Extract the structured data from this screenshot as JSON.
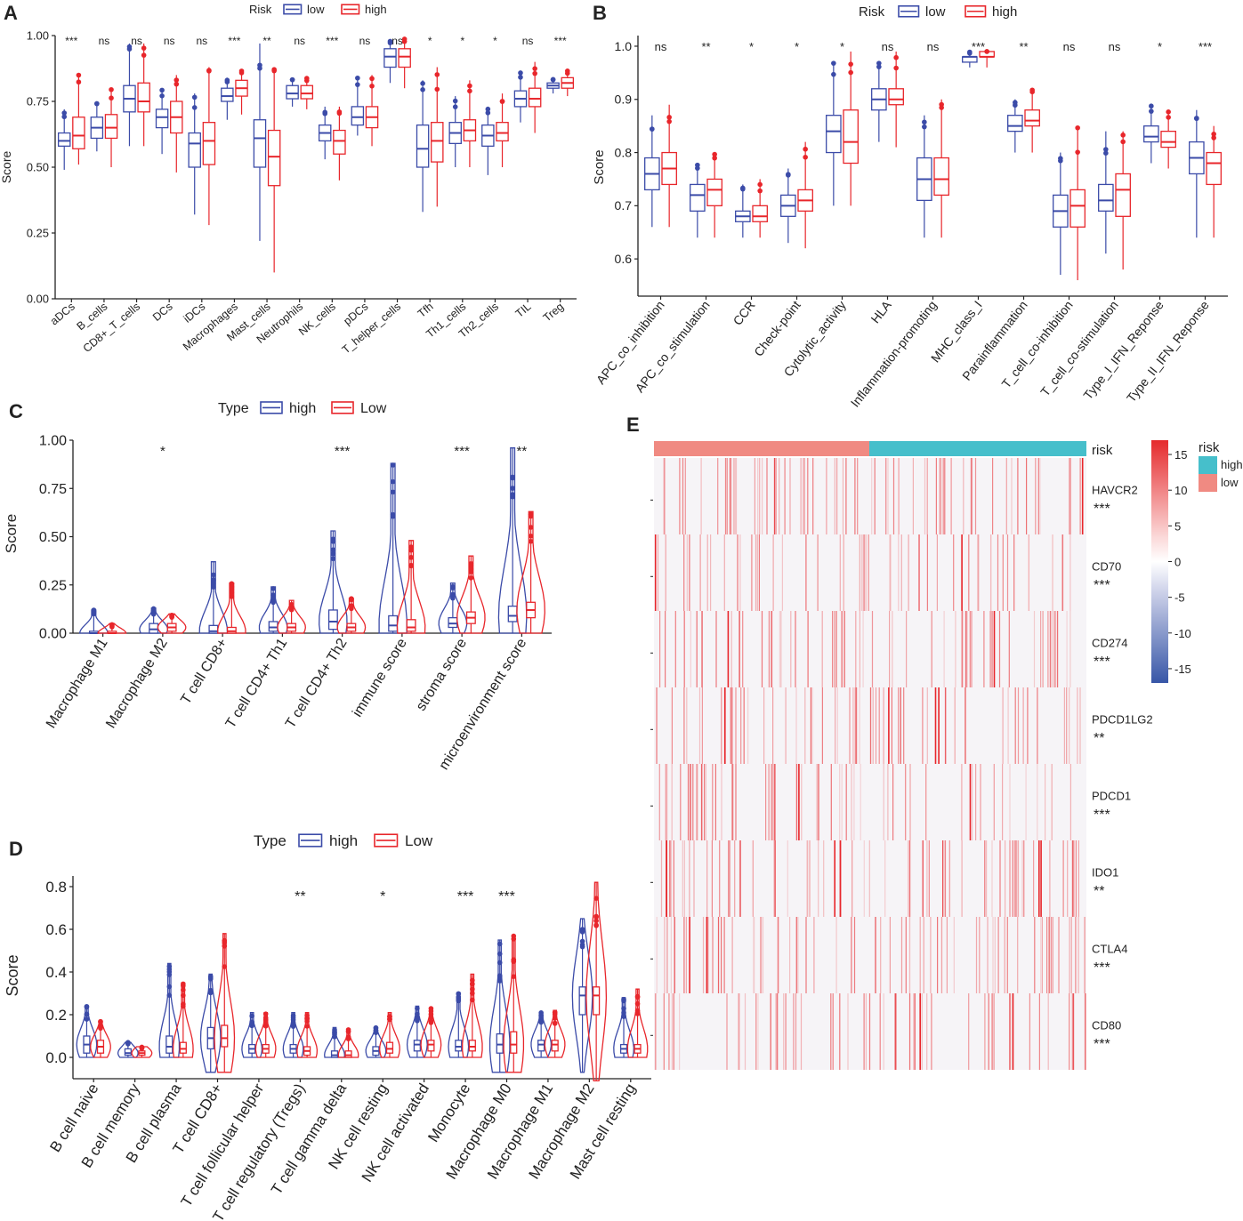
{
  "colors": {
    "low": "#3b4ba8",
    "high": "#e8262b",
    "teal": "#46bfcb",
    "salmon": "#f08a82",
    "axis": "#222222"
  },
  "chart_data": [
    {
      "panel": "A",
      "type": "box",
      "legend_title": "Risk",
      "legend": [
        "low",
        "high"
      ],
      "ylabel": "Score",
      "ylim": [
        0,
        1
      ],
      "yticks": [
        "0.00",
        "0.25",
        "0.50",
        "0.75",
        "1.00"
      ],
      "ytick_values": [
        0,
        0.25,
        0.5,
        0.75,
        1.0
      ],
      "categories": [
        "aDCs",
        "B_cells",
        "CD8+_T_cells",
        "DCs",
        "iDCs",
        "Macrophages",
        "Mast_cells",
        "Neutrophils",
        "NK_cells",
        "pDCs",
        "T_helper_cells",
        "Tfh",
        "Th1_cells",
        "Th2_cells",
        "TIL",
        "Treg"
      ],
      "significance": [
        "***",
        "ns",
        "ns",
        "ns",
        "ns",
        "***",
        "**",
        "ns",
        "***",
        "ns",
        "ns",
        "*",
        "*",
        "*",
        "ns",
        "***"
      ],
      "series": [
        {
          "name": "low",
          "boxes": [
            [
              0.49,
              0.58,
              0.6,
              0.63,
              0.72
            ],
            [
              0.56,
              0.61,
              0.65,
              0.69,
              0.75
            ],
            [
              0.58,
              0.71,
              0.76,
              0.81,
              0.97
            ],
            [
              0.55,
              0.65,
              0.69,
              0.72,
              0.8
            ],
            [
              0.32,
              0.5,
              0.59,
              0.63,
              0.78
            ],
            [
              0.68,
              0.75,
              0.77,
              0.8,
              0.84
            ],
            [
              0.22,
              0.5,
              0.61,
              0.68,
              0.97
            ],
            [
              0.73,
              0.76,
              0.78,
              0.81,
              0.84
            ],
            [
              0.53,
              0.6,
              0.63,
              0.66,
              0.73
            ],
            [
              0.62,
              0.66,
              0.69,
              0.73,
              0.84
            ],
            [
              0.82,
              0.88,
              0.92,
              0.95,
              0.98
            ],
            [
              0.33,
              0.5,
              0.57,
              0.66,
              0.83
            ],
            [
              0.5,
              0.59,
              0.63,
              0.67,
              0.77
            ],
            [
              0.47,
              0.58,
              0.62,
              0.66,
              0.73
            ],
            [
              0.67,
              0.73,
              0.76,
              0.79,
              0.86
            ],
            [
              0.78,
              0.8,
              0.81,
              0.82,
              0.84
            ]
          ]
        },
        {
          "name": "high",
          "boxes": [
            [
              0.51,
              0.57,
              0.62,
              0.69,
              0.85
            ],
            [
              0.5,
              0.61,
              0.65,
              0.7,
              0.8
            ],
            [
              0.58,
              0.71,
              0.75,
              0.82,
              0.97
            ],
            [
              0.48,
              0.63,
              0.69,
              0.75,
              0.85
            ],
            [
              0.28,
              0.51,
              0.6,
              0.67,
              0.88
            ],
            [
              0.7,
              0.77,
              0.8,
              0.83,
              0.87
            ],
            [
              0.1,
              0.43,
              0.54,
              0.64,
              0.88
            ],
            [
              0.72,
              0.76,
              0.78,
              0.81,
              0.84
            ],
            [
              0.45,
              0.55,
              0.6,
              0.64,
              0.73
            ],
            [
              0.58,
              0.65,
              0.69,
              0.73,
              0.85
            ],
            [
              0.8,
              0.88,
              0.92,
              0.95,
              0.99
            ],
            [
              0.35,
              0.52,
              0.6,
              0.67,
              0.88
            ],
            [
              0.5,
              0.6,
              0.64,
              0.68,
              0.83
            ],
            [
              0.5,
              0.6,
              0.63,
              0.67,
              0.78
            ],
            [
              0.63,
              0.73,
              0.76,
              0.8,
              0.9
            ],
            [
              0.77,
              0.8,
              0.82,
              0.84,
              0.87
            ]
          ]
        }
      ]
    },
    {
      "panel": "B",
      "type": "box",
      "legend_title": "Risk",
      "legend": [
        "low",
        "high"
      ],
      "ylabel": "Score",
      "ylim": [
        0.53,
        1.02
      ],
      "yticks": [
        "0.6",
        "0.7",
        "0.8",
        "0.9",
        "1.0"
      ],
      "ytick_values": [
        0.6,
        0.7,
        0.8,
        0.9,
        1.0
      ],
      "categories": [
        "APC_co_inhibition",
        "APC_co_stimulation",
        "CCR",
        "Check-point",
        "Cytolytic_activity",
        "HLA",
        "Inflammation-promoting",
        "MHC_class_I",
        "Parainflammation",
        "T_cell_co-inhibition",
        "T_cell_co-stimulation",
        "Type_I_IFN_Reponse",
        "Type_II_IFN_Reponse"
      ],
      "significance": [
        "ns",
        "**",
        "*",
        "*",
        "*",
        "ns",
        "ns",
        "***",
        "**",
        "ns",
        "ns",
        "*",
        "***"
      ],
      "series": [
        {
          "name": "low",
          "boxes": [
            [
              0.66,
              0.73,
              0.76,
              0.79,
              0.87
            ],
            [
              0.64,
              0.69,
              0.72,
              0.74,
              0.78
            ],
            [
              0.64,
              0.67,
              0.68,
              0.69,
              0.74
            ],
            [
              0.63,
              0.68,
              0.7,
              0.72,
              0.77
            ],
            [
              0.7,
              0.8,
              0.84,
              0.87,
              0.97
            ],
            [
              0.82,
              0.88,
              0.9,
              0.92,
              0.97
            ],
            [
              0.64,
              0.71,
              0.75,
              0.79,
              0.87
            ],
            [
              0.96,
              0.97,
              0.98,
              0.98,
              0.99
            ],
            [
              0.8,
              0.84,
              0.85,
              0.87,
              0.9
            ],
            [
              0.57,
              0.66,
              0.69,
              0.72,
              0.8
            ],
            [
              0.61,
              0.69,
              0.71,
              0.74,
              0.84
            ],
            [
              0.78,
              0.82,
              0.83,
              0.85,
              0.89
            ],
            [
              0.64,
              0.76,
              0.79,
              0.82,
              0.88
            ]
          ]
        },
        {
          "name": "high",
          "boxes": [
            [
              0.66,
              0.74,
              0.77,
              0.8,
              0.89
            ],
            [
              0.64,
              0.7,
              0.73,
              0.75,
              0.8
            ],
            [
              0.64,
              0.67,
              0.68,
              0.7,
              0.75
            ],
            [
              0.62,
              0.69,
              0.71,
              0.73,
              0.82
            ],
            [
              0.7,
              0.78,
              0.82,
              0.88,
              0.99
            ],
            [
              0.81,
              0.89,
              0.9,
              0.92,
              0.99
            ],
            [
              0.64,
              0.72,
              0.75,
              0.79,
              0.9
            ],
            [
              0.96,
              0.98,
              0.98,
              0.99,
              0.99
            ],
            [
              0.8,
              0.85,
              0.86,
              0.88,
              0.92
            ],
            [
              0.56,
              0.66,
              0.7,
              0.73,
              0.85
            ],
            [
              0.58,
              0.68,
              0.73,
              0.76,
              0.84
            ],
            [
              0.77,
              0.81,
              0.82,
              0.84,
              0.88
            ],
            [
              0.64,
              0.74,
              0.78,
              0.8,
              0.85
            ]
          ]
        }
      ]
    },
    {
      "panel": "C",
      "type": "violin-box",
      "legend_title": "Type",
      "legend": [
        "high",
        "Low"
      ],
      "ylabel": "Score",
      "ylim": [
        0,
        1.0
      ],
      "yticks": [
        "0.00",
        "0.25",
        "0.50",
        "0.75",
        "1.00"
      ],
      "ytick_values": [
        0,
        0.25,
        0.5,
        0.75,
        1.0
      ],
      "categories": [
        "Macrophage M1",
        "Macrophage M2",
        "T cell CD8+",
        "T cell CD4+ Th1",
        "T cell CD4+ Th2",
        "immune score",
        "stroma score",
        "microenvironment score"
      ],
      "significance": [
        "",
        "*",
        "",
        "",
        "***",
        "",
        "***",
        "**"
      ],
      "series": [
        {
          "name": "high",
          "boxes": [
            [
              0,
              0,
              0,
              0.01,
              0.12
            ],
            [
              0,
              0,
              0.02,
              0.05,
              0.13
            ],
            [
              0,
              0,
              0.01,
              0.04,
              0.37
            ],
            [
              0,
              0.01,
              0.03,
              0.06,
              0.24
            ],
            [
              0,
              0.02,
              0.06,
              0.12,
              0.53
            ],
            [
              0,
              0.01,
              0.04,
              0.09,
              0.88
            ],
            [
              0,
              0.03,
              0.05,
              0.08,
              0.26
            ],
            [
              0,
              0.06,
              0.09,
              0.14,
              0.96
            ]
          ]
        },
        {
          "name": "Low",
          "boxes": [
            [
              0,
              0,
              0,
              0.01,
              0.05
            ],
            [
              0,
              0.01,
              0.03,
              0.05,
              0.1
            ],
            [
              0,
              0,
              0.01,
              0.03,
              0.26
            ],
            [
              0,
              0.01,
              0.03,
              0.05,
              0.17
            ],
            [
              0,
              0.01,
              0.03,
              0.05,
              0.18
            ],
            [
              0,
              0.01,
              0.03,
              0.07,
              0.48
            ],
            [
              0,
              0.05,
              0.08,
              0.11,
              0.4
            ],
            [
              0,
              0.08,
              0.12,
              0.16,
              0.63
            ]
          ]
        }
      ]
    },
    {
      "panel": "D",
      "type": "violin-box",
      "legend_title": "Type",
      "legend": [
        "high",
        "Low"
      ],
      "ylabel": "Score",
      "ylim": [
        -0.1,
        0.85
      ],
      "yticks": [
        "0.0",
        "0.2",
        "0.4",
        "0.6",
        "0.8"
      ],
      "ytick_values": [
        0,
        0.2,
        0.4,
        0.6,
        0.8
      ],
      "categories": [
        "B cell naive",
        "B cell memory",
        "B cell plasma",
        "T cell CD8+",
        "T cell follicular helper",
        "T cell regulatory (Tregs)",
        "T cell gamma delta",
        "NK cell resting",
        "NK cell activated",
        "Monocyte",
        "Macrophage M0",
        "Macrophage M1",
        "Macrophage M2",
        "Mast cell resting"
      ],
      "significance": [
        "",
        "",
        "",
        "",
        "",
        "**",
        "",
        "*",
        "",
        "***",
        "***",
        "",
        "",
        ""
      ],
      "series": [
        {
          "name": "high",
          "boxes": [
            [
              0,
              0.02,
              0.06,
              0.1,
              0.24
            ],
            [
              0,
              0.01,
              0.02,
              0.04,
              0.07
            ],
            [
              0,
              0.02,
              0.05,
              0.1,
              0.44
            ],
            [
              -0.07,
              0.04,
              0.09,
              0.14,
              0.39
            ],
            [
              0,
              0.02,
              0.04,
              0.06,
              0.21
            ],
            [
              0,
              0.02,
              0.04,
              0.06,
              0.21
            ],
            [
              0,
              0,
              0.01,
              0.03,
              0.14
            ],
            [
              0,
              0.01,
              0.03,
              0.05,
              0.14
            ],
            [
              0,
              0.03,
              0.06,
              0.08,
              0.24
            ],
            [
              0,
              0.03,
              0.05,
              0.08,
              0.3
            ],
            [
              -0.07,
              0.02,
              0.06,
              0.11,
              0.55
            ],
            [
              0,
              0.03,
              0.06,
              0.08,
              0.21
            ],
            [
              -0.07,
              0.2,
              0.29,
              0.33,
              0.65
            ],
            [
              0,
              0.02,
              0.04,
              0.06,
              0.28
            ]
          ]
        },
        {
          "name": "Low",
          "boxes": [
            [
              0,
              0.02,
              0.05,
              0.08,
              0.17
            ],
            [
              0,
              0.01,
              0.02,
              0.03,
              0.05
            ],
            [
              0,
              0.02,
              0.04,
              0.07,
              0.35
            ],
            [
              -0.07,
              0.05,
              0.09,
              0.15,
              0.58
            ],
            [
              0,
              0.02,
              0.04,
              0.06,
              0.21
            ],
            [
              0,
              0.01,
              0.03,
              0.05,
              0.21
            ],
            [
              0,
              0,
              0.01,
              0.03,
              0.13
            ],
            [
              0,
              0.02,
              0.04,
              0.07,
              0.21
            ],
            [
              0,
              0.03,
              0.06,
              0.08,
              0.23
            ],
            [
              0,
              0.03,
              0.05,
              0.08,
              0.39
            ],
            [
              -0.07,
              0.02,
              0.06,
              0.12,
              0.57
            ],
            [
              0,
              0.03,
              0.06,
              0.08,
              0.22
            ],
            [
              -0.11,
              0.2,
              0.29,
              0.33,
              0.82
            ],
            [
              0,
              0.02,
              0.04,
              0.06,
              0.32
            ]
          ]
        }
      ]
    },
    {
      "panel": "E",
      "type": "heatmap",
      "annotation_label": "risk",
      "annotation_legend_title": "risk",
      "annotation_legend": [
        "high",
        "low"
      ],
      "colorbar_ticks": [
        "15",
        "10",
        "5",
        "0",
        "-5",
        "-10",
        "-15"
      ],
      "colorbar_values": [
        15,
        10,
        5,
        0,
        -5,
        -10,
        -15
      ],
      "genes": [
        "HAVCR2",
        "CD70",
        "CD274",
        "PDCD1LG2",
        "PDCD1",
        "IDO1",
        "CTLA4",
        "CD80"
      ],
      "significance": [
        "***",
        "***",
        "***",
        "**",
        "***",
        "**",
        "***",
        "***"
      ]
    }
  ]
}
